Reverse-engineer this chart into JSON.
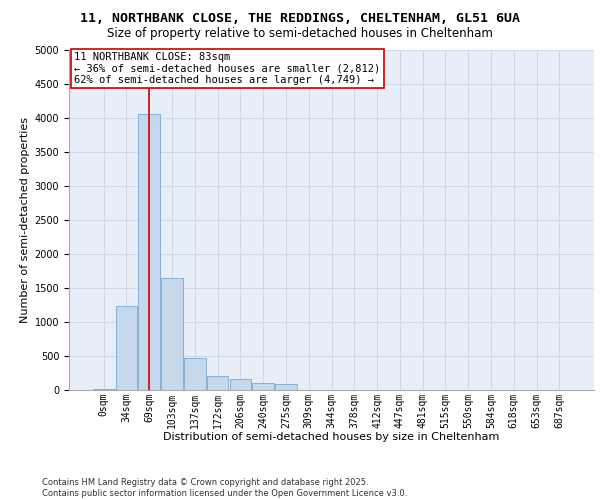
{
  "title_line1": "11, NORTHBANK CLOSE, THE REDDINGS, CHELTENHAM, GL51 6UA",
  "title_line2": "Size of property relative to semi-detached houses in Cheltenham",
  "xlabel": "Distribution of semi-detached houses by size in Cheltenham",
  "ylabel": "Number of semi-detached properties",
  "categories": [
    "0sqm",
    "34sqm",
    "69sqm",
    "103sqm",
    "137sqm",
    "172sqm",
    "206sqm",
    "240sqm",
    "275sqm",
    "309sqm",
    "344sqm",
    "378sqm",
    "412sqm",
    "447sqm",
    "481sqm",
    "515sqm",
    "550sqm",
    "584sqm",
    "618sqm",
    "653sqm",
    "687sqm"
  ],
  "values": [
    20,
    1240,
    4060,
    1650,
    470,
    210,
    155,
    110,
    85,
    0,
    0,
    0,
    0,
    0,
    0,
    0,
    0,
    0,
    0,
    0,
    0
  ],
  "bar_color": "#c8d8ec",
  "bar_edge_color": "#7aaacf",
  "vline_x": 1.97,
  "vline_color": "#cc0000",
  "annotation_text": "11 NORTHBANK CLOSE: 83sqm\n← 36% of semi-detached houses are smaller (2,812)\n62% of semi-detached houses are larger (4,749) →",
  "annotation_box_color": "#ffffff",
  "annotation_edge_color": "#cc0000",
  "ylim": [
    0,
    5000
  ],
  "yticks": [
    0,
    500,
    1000,
    1500,
    2000,
    2500,
    3000,
    3500,
    4000,
    4500,
    5000
  ],
  "grid_color": "#c8d4e8",
  "background_color": "#e8eef8",
  "footnote": "Contains HM Land Registry data © Crown copyright and database right 2025.\nContains public sector information licensed under the Open Government Licence v3.0.",
  "title_fontsize": 9.5,
  "subtitle_fontsize": 8.5,
  "axis_label_fontsize": 8,
  "tick_fontsize": 7,
  "annotation_fontsize": 7.5,
  "footnote_fontsize": 6
}
